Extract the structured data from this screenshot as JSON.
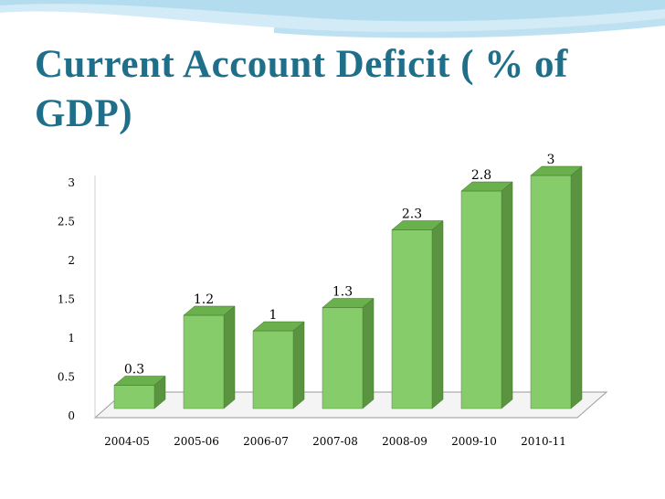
{
  "slide": {
    "title": "Current Account Deficit ( % of GDP)"
  },
  "colors": {
    "title": "#1f6f8b",
    "bar_front": "#86cc6a",
    "bar_side": "#5a9440",
    "bar_top": "#6ab04c"
  },
  "chart_data": {
    "type": "bar",
    "title": "",
    "xlabel": "",
    "ylabel": "",
    "categories": [
      "2004-05",
      "2005-06",
      "2006-07",
      "2007-08",
      "2008-09",
      "2009-10",
      "2010-11"
    ],
    "values": [
      0.3,
      1.2,
      1,
      1.3,
      2.3,
      2.8,
      3
    ],
    "value_labels": [
      "0.3",
      "1.2",
      "1",
      "1.3",
      "2.3",
      "2.8",
      "3"
    ],
    "ylim": [
      0,
      3
    ],
    "yticks": [
      "0",
      "0.5",
      "1",
      "1.5",
      "2",
      "2.5",
      "3"
    ],
    "grid": false,
    "legend": "none",
    "style": "3d-column"
  }
}
